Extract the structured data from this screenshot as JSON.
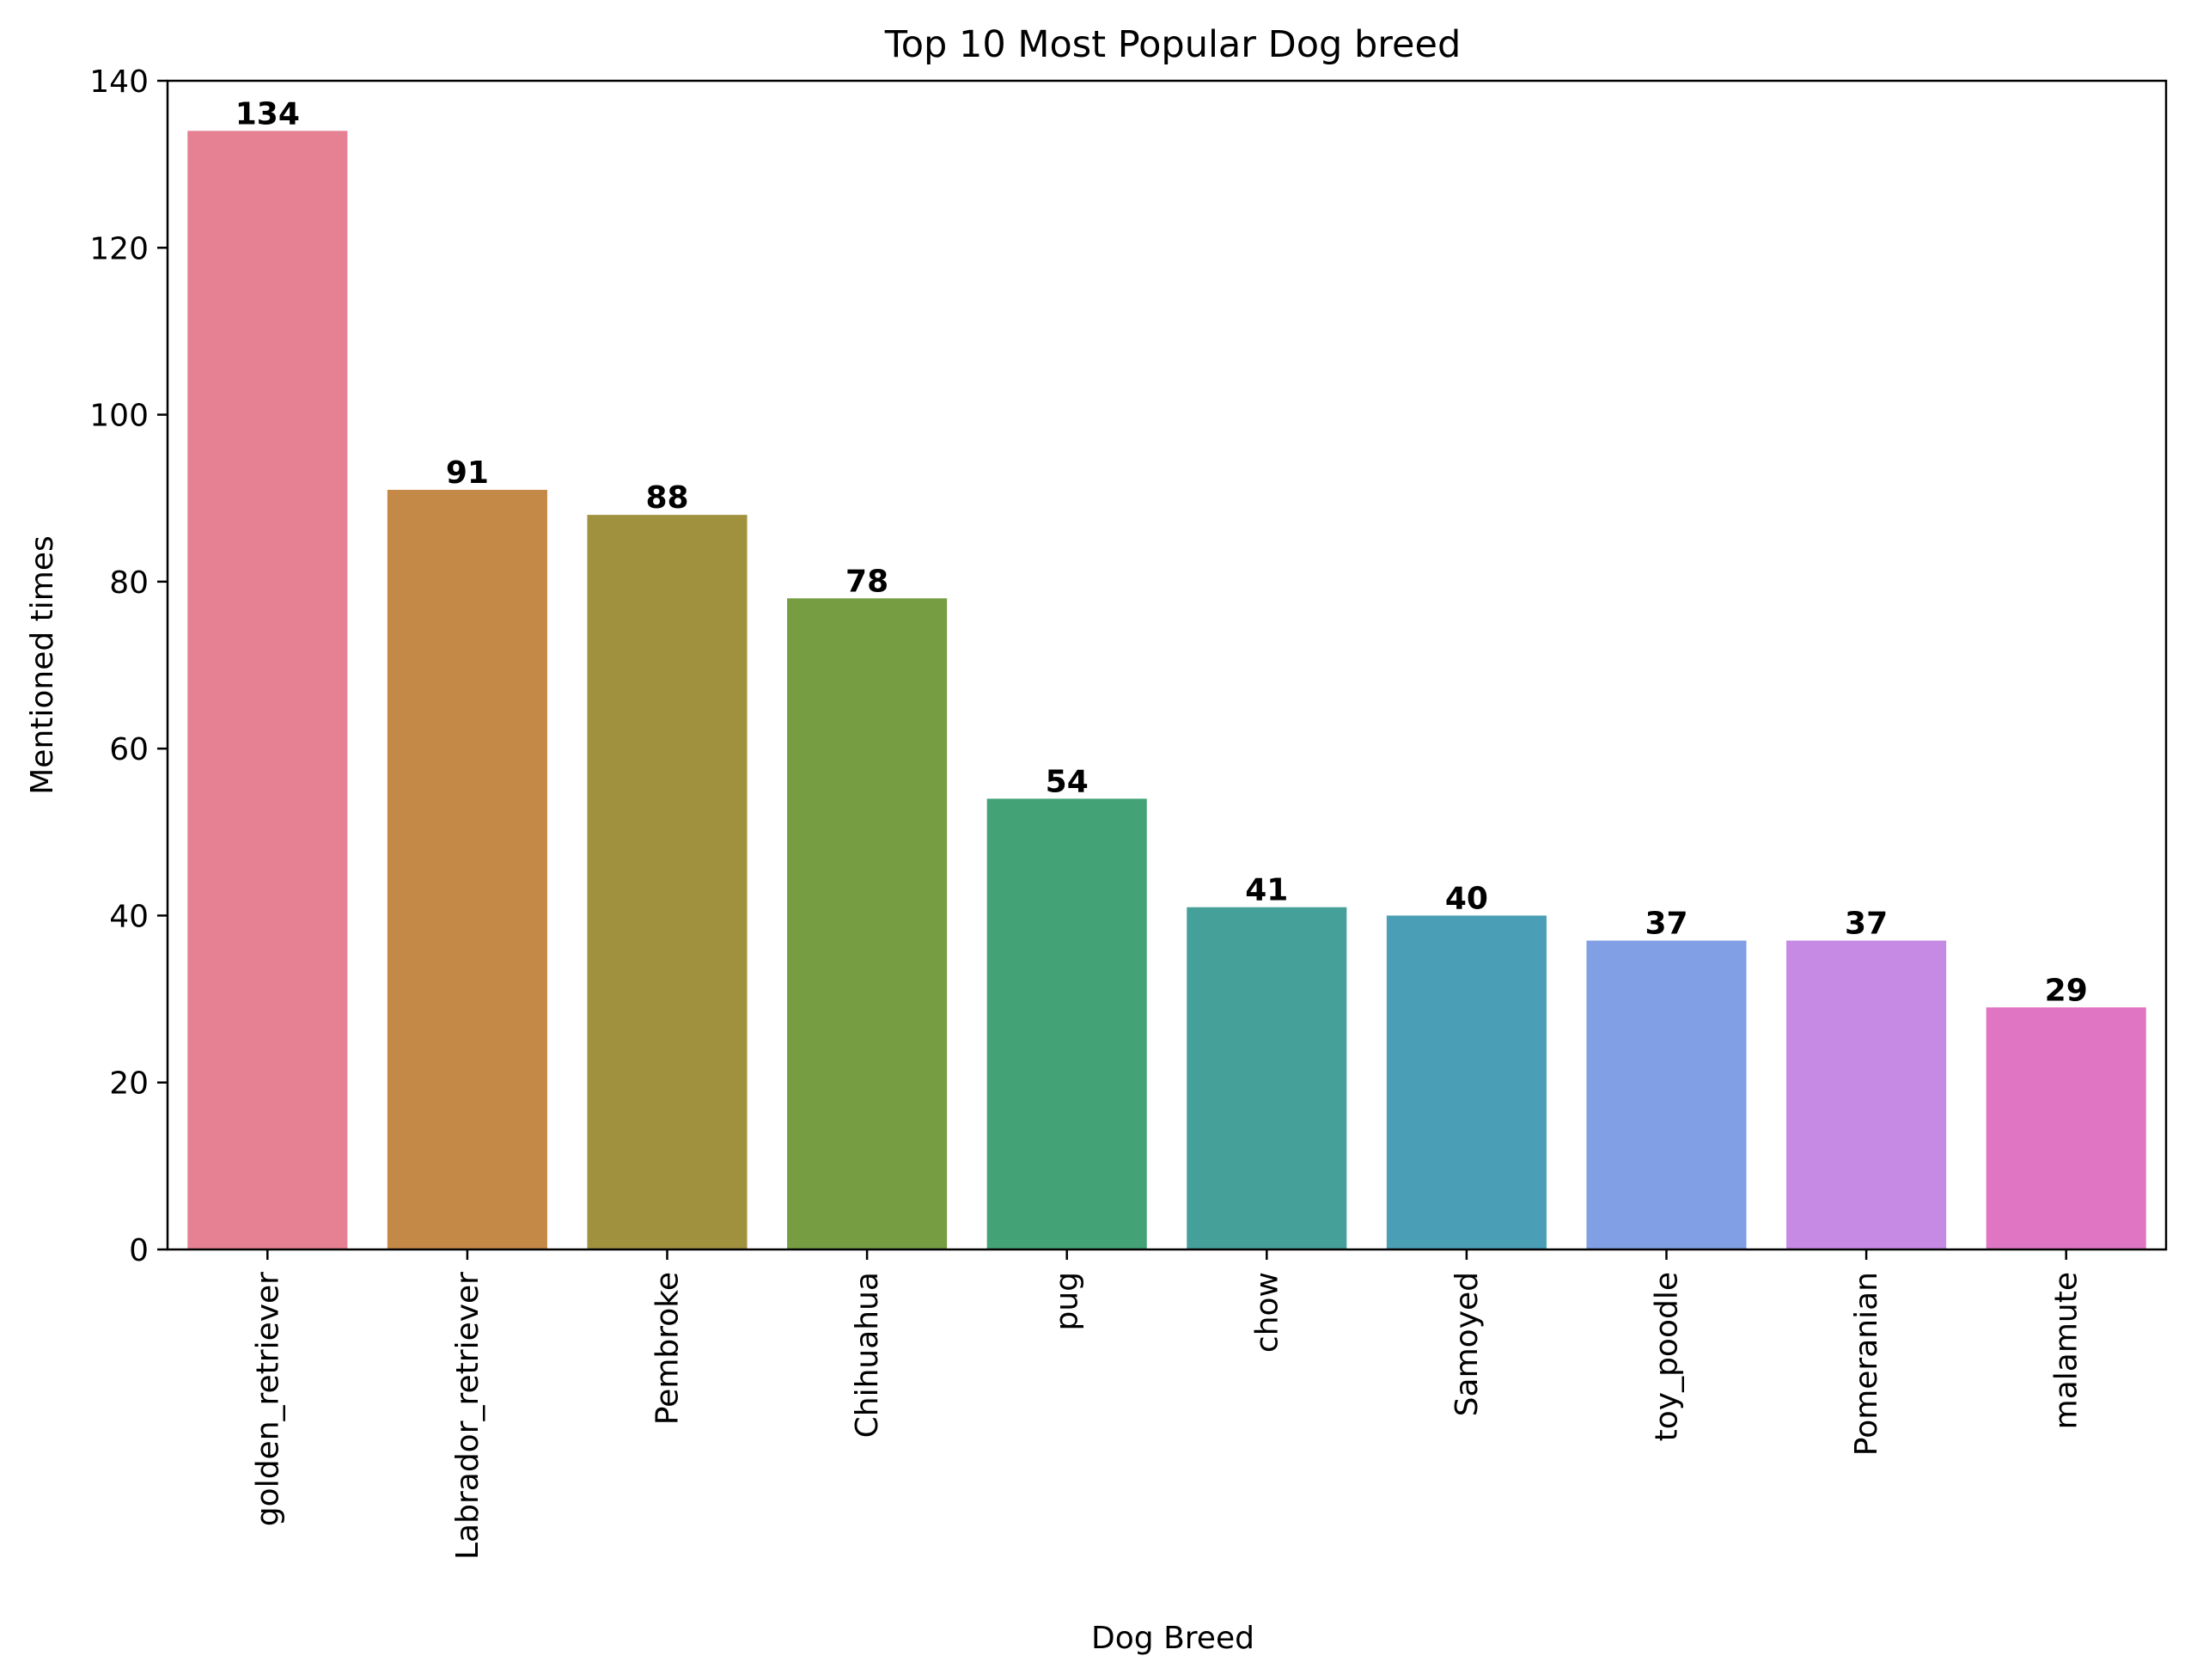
{
  "chart_data": {
    "type": "bar",
    "title": "Top 10 Most Popular Dog breed",
    "xlabel": "Dog Breed",
    "ylabel": "Mentioned times",
    "categories": [
      "golden_retriever",
      "Labrador_retriever",
      "Pembroke",
      "Chihuahua",
      "pug",
      "chow",
      "Samoyed",
      "toy_poodle",
      "Pomeranian",
      "malamute"
    ],
    "values": [
      134,
      91,
      88,
      78,
      54,
      41,
      40,
      37,
      37,
      29
    ],
    "value_labels": [
      "134",
      "91",
      "88",
      "78",
      "54",
      "41",
      "40",
      "37",
      "37",
      "29"
    ],
    "colors": [
      "#e68193",
      "#c58947",
      "#a0913f",
      "#779d43",
      "#44a277",
      "#46a09a",
      "#4a9eb5",
      "#809fe4",
      "#c689e4",
      "#e075c3"
    ],
    "ylim": [
      0,
      140
    ],
    "yticks": [
      0,
      20,
      40,
      60,
      80,
      100,
      120,
      140
    ],
    "ytick_labels": [
      "0",
      "20",
      "40",
      "60",
      "80",
      "100",
      "120",
      "140"
    ],
    "grid": false,
    "legend": "none"
  }
}
